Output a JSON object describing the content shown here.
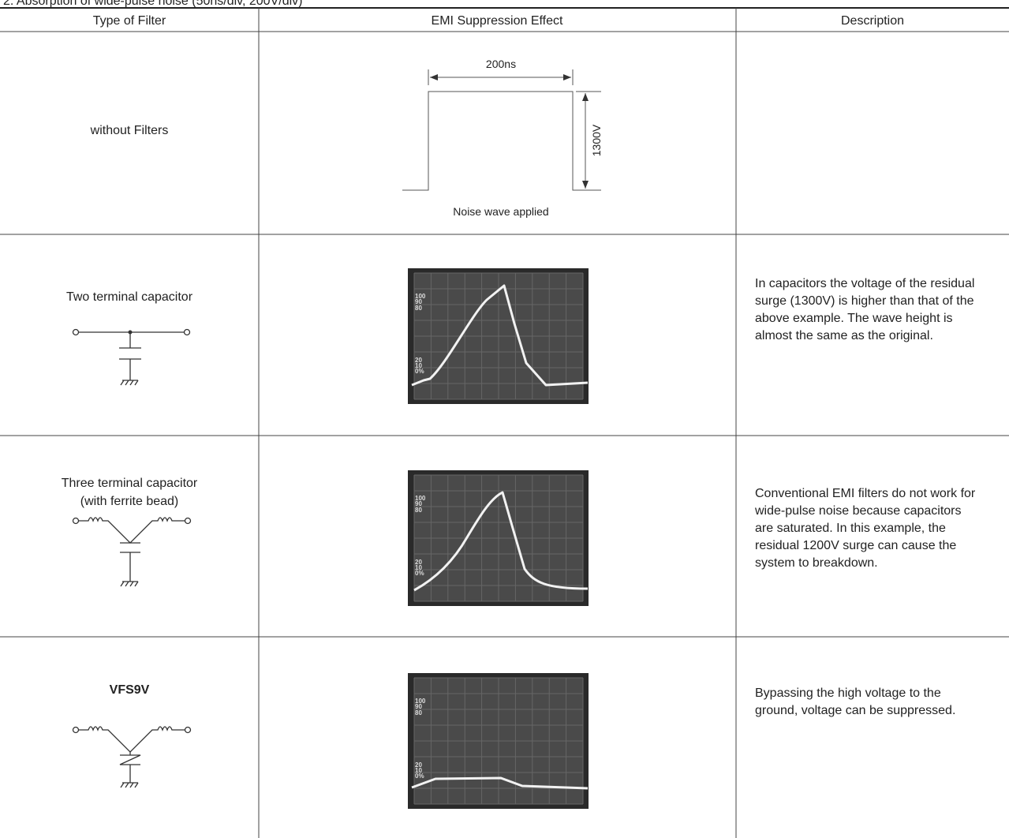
{
  "title": "2. Absorption of wide-pulse noise (50ns/div, 200V/div)",
  "table": {
    "headers": [
      "Type of Filter",
      "EMI Suppression Effect",
      "Description"
    ],
    "rows": [
      {
        "filter": [
          "without Filters"
        ],
        "diagram": {
          "width_label": "200ns",
          "height_label": "1300V",
          "caption": "Noise wave applied"
        },
        "description": []
      },
      {
        "filter": [
          "Two terminal capacitor"
        ],
        "description": [
          "In capacitors the voltage of the residual",
          "surge (1300V) is higher than that of the",
          "above example. The wave height is",
          "almost the same as the original."
        ]
      },
      {
        "filter": [
          "Three terminal capacitor",
          "(with ferrite bead)"
        ],
        "description": [
          "Conventional EMI filters do not work for",
          "wide-pulse noise because capacitors",
          "are saturated. In this example, the",
          "residual 1200V surge can cause the",
          "system to breakdown."
        ]
      },
      {
        "filter": [
          "VFS9V"
        ],
        "description": [
          "Bypassing the high voltage to the",
          "ground, voltage can be suppressed."
        ]
      }
    ],
    "scope_labels": [
      "100",
      "90",
      "80",
      "20",
      "10",
      "0%"
    ]
  }
}
